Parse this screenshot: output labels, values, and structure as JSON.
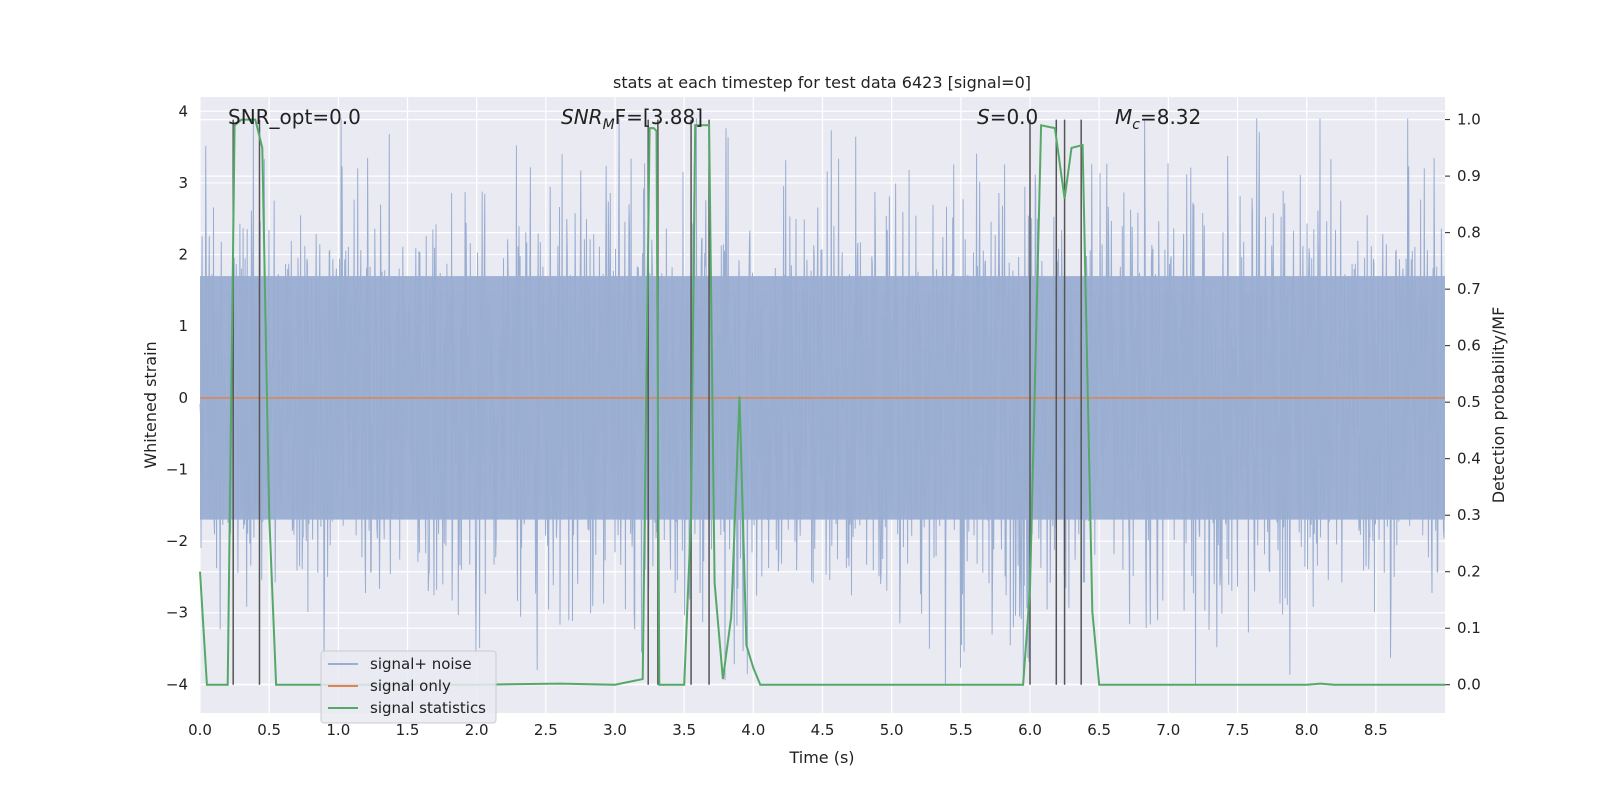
{
  "chart_data": {
    "type": "line",
    "title": "stats at each timestep for test data 6423 [signal=0]",
    "xlabel": "Time (s)",
    "ylabel": "Whitened strain",
    "y2label": "Detection probability/MF",
    "xlim": [
      0.0,
      9.0
    ],
    "ylim": [
      -4.4,
      4.2
    ],
    "y2lim": [
      -0.05,
      1.04
    ],
    "xticks": [
      0.0,
      0.5,
      1.0,
      1.5,
      2.0,
      2.5,
      3.0,
      3.5,
      4.0,
      4.5,
      5.0,
      5.5,
      6.0,
      6.5,
      7.0,
      7.5,
      8.0,
      8.5
    ],
    "xtick_labels": [
      "0.0",
      "0.5",
      "1.0",
      "1.5",
      "2.0",
      "2.5",
      "3.0",
      "3.5",
      "4.0",
      "4.5",
      "5.0",
      "5.5",
      "6.0",
      "6.5",
      "7.0",
      "7.5",
      "8.0",
      "8.5"
    ],
    "yticks": [
      -4,
      -3,
      -2,
      -1,
      0,
      1,
      2,
      3,
      4
    ],
    "ytick_labels": [
      "−4",
      "−3",
      "−2",
      "−1",
      "0",
      "1",
      "2",
      "3",
      "4"
    ],
    "y2ticks": [
      0.0,
      0.1,
      0.2,
      0.3,
      0.4,
      0.5,
      0.6,
      0.7,
      0.8,
      0.9,
      1.0
    ],
    "y2tick_labels": [
      "0.0",
      "0.1",
      "0.2",
      "0.3",
      "0.4",
      "0.5",
      "0.6",
      "0.7",
      "0.8",
      "0.9",
      "1.0"
    ],
    "grid": true,
    "annotations": {
      "snr_opt": "SNR_opt=0.0",
      "snr_mf_main": "SNR",
      "snr_mf_sub": "M",
      "snr_mf_rest": "F=[3.88]",
      "s_italic": "S",
      "s_rest": "=0.0",
      "mc_main": "M",
      "mc_sub": "c",
      "mc_rest": "=8.32"
    },
    "legend": {
      "placement": "lower-left",
      "entries": [
        "signal+ noise",
        "signal only",
        "signal statistics"
      ]
    },
    "colors": {
      "noise": "#9aaed2",
      "signal": "#dd8452",
      "stats": "#55a868",
      "vlines": "#555555",
      "background": "#eaeaf2",
      "grid": "#ffffff"
    },
    "series": [
      {
        "name": "signal+ noise",
        "kind": "whitened strain noise, approx. amplitude range",
        "typical_envelope": [
          -1.7,
          1.7
        ],
        "min": -4.0,
        "max": 3.9
      },
      {
        "name": "signal only",
        "x": [
          0.0,
          9.0
        ],
        "y": [
          0.0,
          0.0
        ]
      },
      {
        "name": "signal statistics",
        "x": [
          0.0,
          0.05,
          0.1,
          0.2,
          0.25,
          0.3,
          0.4,
          0.45,
          0.5,
          0.55,
          1.0,
          2.0,
          2.6,
          3.0,
          3.2,
          3.25,
          3.28,
          3.3,
          3.32,
          3.35,
          3.5,
          3.55,
          3.58,
          3.62,
          3.68,
          3.72,
          3.78,
          3.84,
          3.9,
          3.95,
          4.0,
          4.05,
          4.1,
          5.0,
          5.5,
          5.95,
          6.0,
          6.08,
          6.18,
          6.25,
          6.3,
          6.38,
          6.45,
          6.5,
          7.0,
          8.0,
          8.1,
          8.2,
          8.3,
          9.0
        ],
        "y": [
          0.2,
          0.0,
          0.0,
          0.0,
          0.99,
          1.0,
          1.0,
          0.95,
          0.3,
          0.0,
          0.0,
          0.0,
          0.002,
          0.0,
          0.01,
          0.985,
          0.985,
          0.98,
          0.0,
          0.0,
          0.0,
          0.3,
          0.99,
          0.99,
          0.99,
          0.18,
          0.01,
          0.12,
          0.51,
          0.07,
          0.03,
          0.0,
          0.0,
          0.0,
          0.0,
          0.0,
          0.17,
          0.99,
          0.985,
          0.86,
          0.95,
          0.955,
          0.13,
          0.0,
          0.0,
          0.0,
          0.002,
          0.0,
          0.0,
          0.0
        ]
      }
    ],
    "vertical_lines_x": [
      0.24,
      0.43,
      3.24,
      3.31,
      3.55,
      3.68,
      6.0,
      6.19,
      6.25,
      6.37
    ]
  }
}
